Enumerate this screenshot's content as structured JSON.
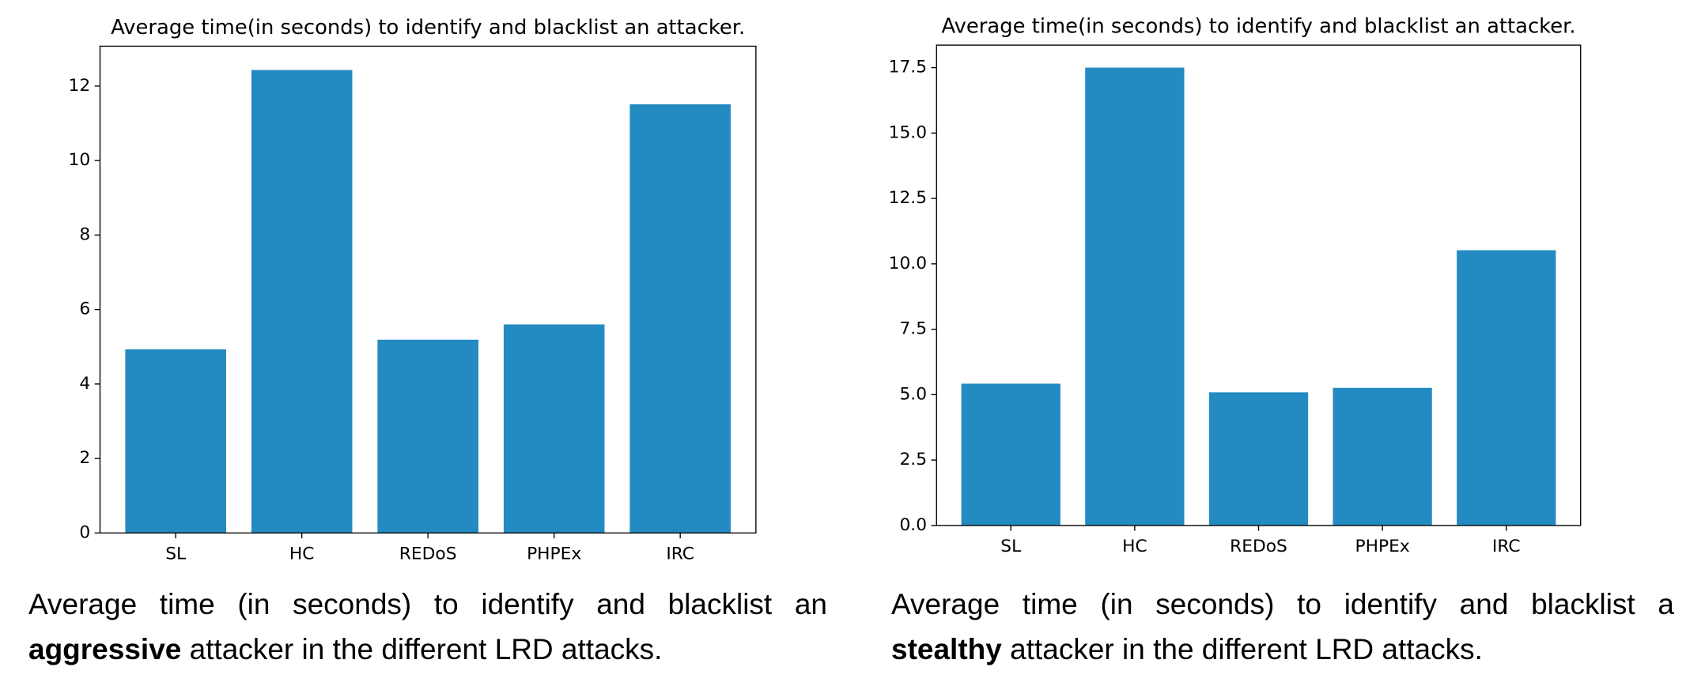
{
  "chart_data": [
    {
      "type": "bar",
      "title": "Average time(in seconds) to identify and blacklist an attacker.",
      "categories": [
        "SL",
        "HC",
        "REDoS",
        "PHPEx",
        "IRC"
      ],
      "values": [
        4.93,
        12.43,
        5.19,
        5.6,
        11.51
      ],
      "color": "#238bc2",
      "ylim": [
        0,
        13.07
      ],
      "yticks": [
        0,
        2,
        4,
        6,
        8,
        10,
        12
      ],
      "caption": {
        "before": "Average time (in seconds) to identify and blacklist an",
        "emphasis": "aggressive",
        "after": "attacker in the different LRD attacks."
      }
    },
    {
      "type": "bar",
      "title": "Average time(in seconds) to identify and blacklist an attacker.",
      "categories": [
        "SL",
        "HC",
        "REDoS",
        "PHPEx",
        "IRC"
      ],
      "values": [
        5.42,
        17.5,
        5.09,
        5.26,
        10.52
      ],
      "color": "#238bc2",
      "ylim": [
        0,
        18.36
      ],
      "yticks": [
        {
          "value": 0,
          "label": "0.0"
        },
        2.5,
        {
          "value": 5,
          "label": "5.0"
        },
        7.5,
        {
          "value": 10,
          "label": "10.0"
        },
        12.5,
        {
          "value": 15,
          "label": "15.0"
        },
        17.5
      ],
      "caption": {
        "before": "Average time (in seconds) to identify and blacklist a",
        "emphasis": "stealthy",
        "after": "attacker in the different LRD attacks."
      }
    }
  ]
}
